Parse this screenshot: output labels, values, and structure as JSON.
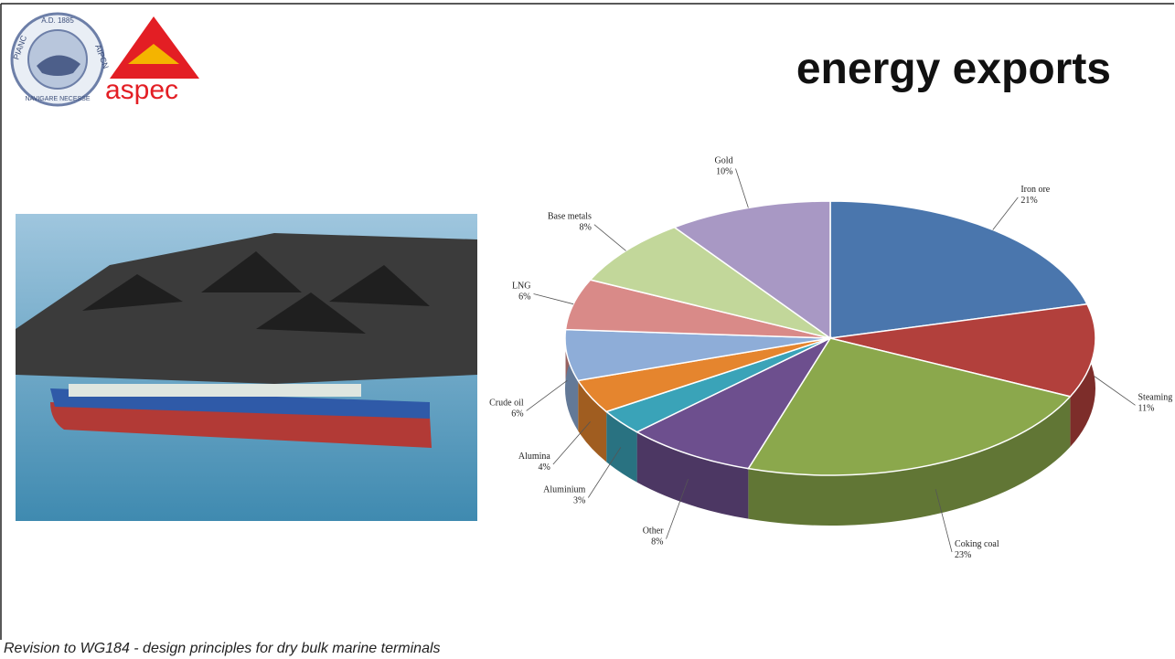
{
  "title": "energy exports",
  "footer": "Revision to WG184 - design principles for dry bulk marine terminals",
  "logos": {
    "pianc_top": "A.D. 1885",
    "pianc_left": "PIANC",
    "pianc_right": "AIPCN",
    "pianc_bottom": "NAVIGARE NECESSE",
    "aspec": "aspec"
  },
  "chart_data": {
    "type": "pie",
    "categories": [
      "Iron ore",
      "Steaming coal",
      "Coking coal",
      "Other",
      "Aluminium",
      "Alumina",
      "Crude oil",
      "LNG",
      "Base metals",
      "Gold"
    ],
    "values": [
      21,
      11,
      23,
      8,
      3,
      4,
      6,
      6,
      8,
      10
    ],
    "value_labels": [
      "21%",
      "11%",
      "23%",
      "8%",
      "3%",
      "4%",
      "6%",
      "6%",
      "8%",
      "10%"
    ],
    "colors": [
      "#4a76ad",
      "#b2403c",
      "#8ba84c",
      "#6d4f8e",
      "#3aa3b8",
      "#e5852e",
      "#8eadd8",
      "#d98a88",
      "#c2d79a",
      "#a898c4"
    ]
  }
}
